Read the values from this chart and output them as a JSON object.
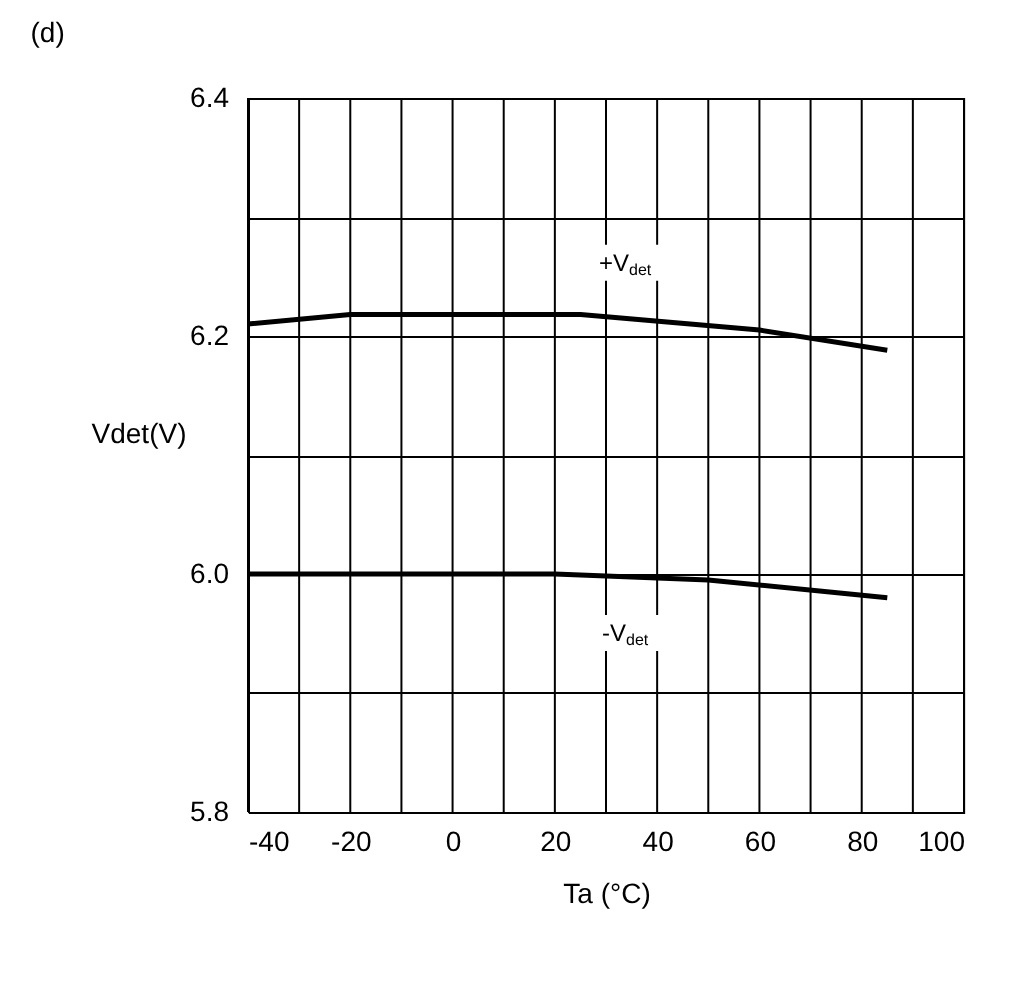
{
  "chart_data": {
    "type": "line",
    "title": "(d)",
    "xlabel": "Ta (°C)",
    "ylabel": "Vdet(V)",
    "xlim": [
      -40,
      100
    ],
    "ylim": [
      5.8,
      6.4
    ],
    "xticks": [
      -40,
      {
        "value": -30,
        "label": null
      },
      -20,
      {
        "value": -10,
        "label": null
      },
      0,
      {
        "value": 10,
        "label": null
      },
      20,
      {
        "value": 30,
        "label": null
      },
      40,
      {
        "value": 50,
        "label": null
      },
      60,
      {
        "value": 70,
        "label": null
      },
      80,
      {
        "value": 90,
        "label": null
      },
      100
    ],
    "yticks": [
      {
        "value": 5.8,
        "label": "5.8"
      },
      {
        "value": 5.9,
        "label": null
      },
      {
        "value": 6.0,
        "label": "6.0"
      },
      {
        "value": 6.1,
        "label": null
      },
      {
        "value": 6.2,
        "label": "6.2"
      },
      {
        "value": 6.3,
        "label": null
      },
      {
        "value": 6.4,
        "label": "6.4"
      }
    ],
    "grid": true,
    "marker": "none",
    "line_style": "solid",
    "series": [
      {
        "name": "+V$_{det}$",
        "color": "#000000",
        "x": [
          -40,
          -20,
          25,
          60,
          85
        ],
        "values": [
          6.21,
          6.218,
          6.218,
          6.205,
          6.188
        ]
      },
      {
        "name": "-V$_{det}$",
        "color": "#000000",
        "x": [
          -40,
          20,
          50,
          85
        ],
        "values": [
          6.0,
          6.0,
          5.995,
          5.98
        ]
      }
    ]
  }
}
